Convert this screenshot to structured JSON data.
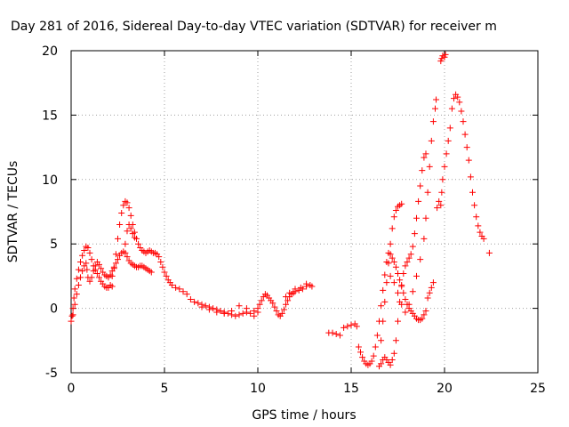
{
  "chart_data": {
    "type": "scatter",
    "title": "Day 281 of 2016, Sidereal Day-to-day VTEC variation (SDTVAR) for receiver m",
    "xlabel": "GPS time / hours",
    "ylabel": "SDTVAR / TECUs",
    "xlim": [
      0,
      25
    ],
    "ylim": [
      -5,
      20
    ],
    "xticks": [
      "0",
      "5",
      "10",
      "15",
      "20",
      "25"
    ],
    "yticks": [
      "-5",
      "0",
      "5",
      "10",
      "15",
      "20"
    ],
    "grid": true,
    "marker": "+",
    "color": "#ff0000",
    "series": [
      {
        "points": [
          [
            0.0,
            -1.0
          ],
          [
            0.05,
            -0.6
          ],
          [
            0.1,
            0.0
          ],
          [
            0.15,
            0.8
          ],
          [
            0.2,
            1.5
          ],
          [
            0.3,
            2.3
          ],
          [
            0.4,
            3.0
          ],
          [
            0.5,
            3.6
          ],
          [
            0.6,
            4.1
          ],
          [
            0.7,
            4.5
          ],
          [
            0.8,
            4.8
          ],
          [
            0.9,
            4.7
          ],
          [
            1.0,
            4.3
          ],
          [
            1.1,
            3.8
          ],
          [
            1.2,
            3.3
          ],
          [
            1.3,
            3.0
          ],
          [
            1.4,
            2.7
          ],
          [
            1.5,
            2.4
          ],
          [
            1.6,
            2.1
          ],
          [
            1.7,
            1.9
          ],
          [
            1.8,
            1.7
          ],
          [
            1.9,
            1.6
          ],
          [
            2.0,
            1.6
          ],
          [
            2.1,
            1.8
          ],
          [
            2.2,
            1.7
          ],
          [
            0.1,
            -0.5
          ],
          [
            0.2,
            0.3
          ],
          [
            0.3,
            1.1
          ],
          [
            0.4,
            1.8
          ],
          [
            0.5,
            2.4
          ],
          [
            0.6,
            2.9
          ],
          [
            0.7,
            3.3
          ],
          [
            0.8,
            3.5
          ],
          [
            0.85,
            3.0
          ],
          [
            0.9,
            2.4
          ],
          [
            1.0,
            2.1
          ],
          [
            1.1,
            2.4
          ],
          [
            1.2,
            2.9
          ],
          [
            1.3,
            3.3
          ],
          [
            1.4,
            3.6
          ],
          [
            1.5,
            3.4
          ],
          [
            1.6,
            3.1
          ],
          [
            1.7,
            2.8
          ],
          [
            1.8,
            2.6
          ],
          [
            1.9,
            2.5
          ],
          [
            2.0,
            2.4
          ],
          [
            2.1,
            2.6
          ],
          [
            2.2,
            2.9
          ],
          [
            2.3,
            3.2
          ],
          [
            2.4,
            3.5
          ],
          [
            2.5,
            3.8
          ],
          [
            2.6,
            4.1
          ],
          [
            2.7,
            4.3
          ],
          [
            2.8,
            4.4
          ],
          [
            2.9,
            4.3
          ],
          [
            3.0,
            4.0
          ],
          [
            3.1,
            3.7
          ],
          [
            3.2,
            3.5
          ],
          [
            3.3,
            3.4
          ],
          [
            3.4,
            3.3
          ],
          [
            3.5,
            3.2
          ],
          [
            3.6,
            3.2
          ],
          [
            3.7,
            3.3
          ],
          [
            3.8,
            3.3
          ],
          [
            3.9,
            3.2
          ],
          [
            4.0,
            3.1
          ],
          [
            4.1,
            3.0
          ],
          [
            4.2,
            2.9
          ],
          [
            4.3,
            2.8
          ],
          [
            2.2,
            2.5
          ],
          [
            2.3,
            3.1
          ],
          [
            2.4,
            4.2
          ],
          [
            2.5,
            5.4
          ],
          [
            2.6,
            6.5
          ],
          [
            2.7,
            7.4
          ],
          [
            2.8,
            8.0
          ],
          [
            2.9,
            8.3
          ],
          [
            3.0,
            8.2
          ],
          [
            3.1,
            7.8
          ],
          [
            3.2,
            7.2
          ],
          [
            3.3,
            6.5
          ],
          [
            3.4,
            5.9
          ],
          [
            3.5,
            5.4
          ],
          [
            3.6,
            5.0
          ],
          [
            3.7,
            4.7
          ],
          [
            3.8,
            4.5
          ],
          [
            3.9,
            4.4
          ],
          [
            4.0,
            4.3
          ],
          [
            4.1,
            4.4
          ],
          [
            4.2,
            4.5
          ],
          [
            4.3,
            4.4
          ],
          [
            4.4,
            4.3
          ],
          [
            4.5,
            4.3
          ],
          [
            4.6,
            4.2
          ],
          [
            4.7,
            4.0
          ],
          [
            4.8,
            3.6
          ],
          [
            4.9,
            3.2
          ],
          [
            5.0,
            2.8
          ],
          [
            5.1,
            2.5
          ],
          [
            5.2,
            2.2
          ],
          [
            5.3,
            2.0
          ],
          [
            5.4,
            1.8
          ],
          [
            5.6,
            1.6
          ],
          [
            5.8,
            1.5
          ],
          [
            6.0,
            1.3
          ],
          [
            6.2,
            1.1
          ],
          [
            2.9,
            5.0
          ],
          [
            3.0,
            6.0
          ],
          [
            3.1,
            6.5
          ],
          [
            3.2,
            6.2
          ],
          [
            3.3,
            5.8
          ],
          [
            3.4,
            5.5
          ],
          [
            6.4,
            0.7
          ],
          [
            6.6,
            0.5
          ],
          [
            6.8,
            0.4
          ],
          [
            7.0,
            0.3
          ],
          [
            7.2,
            0.2
          ],
          [
            7.4,
            0.1
          ],
          [
            7.6,
            0.0
          ],
          [
            7.8,
            -0.1
          ],
          [
            8.0,
            -0.2
          ],
          [
            8.2,
            -0.3
          ],
          [
            8.4,
            -0.4
          ],
          [
            8.6,
            -0.5
          ],
          [
            8.8,
            -0.6
          ],
          [
            9.0,
            -0.5
          ],
          [
            9.2,
            -0.4
          ],
          [
            9.4,
            -0.3
          ],
          [
            9.6,
            -0.4
          ],
          [
            9.8,
            -0.6
          ],
          [
            10.0,
            -0.3
          ],
          [
            7.0,
            0.1
          ],
          [
            7.4,
            -0.1
          ],
          [
            7.8,
            -0.3
          ],
          [
            8.2,
            -0.4
          ],
          [
            8.6,
            -0.2
          ],
          [
            9.0,
            0.2
          ],
          [
            9.4,
            0.0
          ],
          [
            9.8,
            -0.2
          ],
          [
            10.0,
            0.0
          ],
          [
            10.1,
            0.3
          ],
          [
            10.2,
            0.6
          ],
          [
            10.3,
            0.9
          ],
          [
            10.4,
            1.1
          ],
          [
            10.5,
            1.0
          ],
          [
            10.6,
            0.8
          ],
          [
            10.7,
            0.6
          ],
          [
            10.8,
            0.4
          ],
          [
            10.9,
            0.1
          ],
          [
            11.0,
            -0.2
          ],
          [
            11.1,
            -0.5
          ],
          [
            11.2,
            -0.6
          ],
          [
            11.3,
            -0.4
          ],
          [
            11.4,
            -0.1
          ],
          [
            11.5,
            0.3
          ],
          [
            11.6,
            0.6
          ],
          [
            11.7,
            0.9
          ],
          [
            11.8,
            1.1
          ],
          [
            11.9,
            1.2
          ],
          [
            12.0,
            1.3
          ],
          [
            12.2,
            1.4
          ],
          [
            12.4,
            1.5
          ],
          [
            12.6,
            1.7
          ],
          [
            12.8,
            1.8
          ],
          [
            12.9,
            1.7
          ],
          [
            11.5,
            0.9
          ],
          [
            11.7,
            1.2
          ],
          [
            12.0,
            1.5
          ],
          [
            12.3,
            1.6
          ],
          [
            12.6,
            1.9
          ],
          [
            13.8,
            -1.9
          ],
          [
            14.0,
            -1.9
          ],
          [
            14.2,
            -2.0
          ],
          [
            14.4,
            -2.1
          ],
          [
            14.6,
            -1.5
          ],
          [
            14.8,
            -1.4
          ],
          [
            15.0,
            -1.3
          ],
          [
            15.2,
            -1.2
          ],
          [
            15.3,
            -1.4
          ],
          [
            15.4,
            -3.0
          ],
          [
            15.5,
            -3.4
          ],
          [
            15.6,
            -3.8
          ],
          [
            15.7,
            -4.1
          ],
          [
            15.8,
            -4.3
          ],
          [
            15.9,
            -4.4
          ],
          [
            16.0,
            -4.3
          ],
          [
            16.1,
            -4.1
          ],
          [
            16.2,
            -3.7
          ],
          [
            16.3,
            -3.0
          ],
          [
            16.4,
            -2.1
          ],
          [
            16.5,
            -1.0
          ],
          [
            16.6,
            0.2
          ],
          [
            16.7,
            1.4
          ],
          [
            16.8,
            2.6
          ],
          [
            16.9,
            3.6
          ],
          [
            17.0,
            4.3
          ],
          [
            17.1,
            4.2
          ],
          [
            17.2,
            3.9
          ],
          [
            17.3,
            3.6
          ],
          [
            17.4,
            3.2
          ],
          [
            17.5,
            2.7
          ],
          [
            17.6,
            2.2
          ],
          [
            17.7,
            1.7
          ],
          [
            17.8,
            1.2
          ],
          [
            17.9,
            0.7
          ],
          [
            18.0,
            0.3
          ],
          [
            18.1,
            0.0
          ],
          [
            18.2,
            -0.2
          ],
          [
            18.3,
            -0.4
          ],
          [
            18.4,
            -0.6
          ],
          [
            18.5,
            -0.8
          ],
          [
            18.6,
            -0.9
          ],
          [
            18.7,
            -0.9
          ],
          [
            18.8,
            -0.8
          ],
          [
            18.9,
            -0.5
          ],
          [
            19.0,
            -0.2
          ],
          [
            16.5,
            -4.5
          ],
          [
            16.6,
            -4.3
          ],
          [
            16.7,
            -4.0
          ],
          [
            16.8,
            -3.8
          ],
          [
            16.9,
            -4.0
          ],
          [
            17.0,
            -4.2
          ],
          [
            17.1,
            -4.4
          ],
          [
            17.2,
            -4.0
          ],
          [
            17.3,
            -3.5
          ],
          [
            17.4,
            -2.5
          ],
          [
            17.5,
            -1.0
          ],
          [
            17.6,
            0.5
          ],
          [
            17.7,
            1.8
          ],
          [
            17.8,
            2.7
          ],
          [
            17.9,
            3.3
          ],
          [
            18.0,
            3.6
          ],
          [
            18.1,
            3.9
          ],
          [
            18.2,
            4.2
          ],
          [
            18.3,
            4.8
          ],
          [
            18.4,
            5.8
          ],
          [
            18.5,
            7.0
          ],
          [
            18.6,
            8.3
          ],
          [
            18.7,
            9.5
          ],
          [
            18.8,
            10.7
          ],
          [
            18.9,
            11.7
          ],
          [
            19.0,
            12.0
          ],
          [
            16.6,
            -2.5
          ],
          [
            16.7,
            -1.0
          ],
          [
            16.8,
            0.5
          ],
          [
            16.9,
            2.0
          ],
          [
            17.0,
            3.5
          ],
          [
            17.1,
            5.0
          ],
          [
            17.2,
            6.2
          ],
          [
            17.3,
            7.1
          ],
          [
            17.4,
            7.6
          ],
          [
            17.5,
            7.9
          ],
          [
            17.6,
            8.0
          ],
          [
            17.7,
            8.1
          ],
          [
            17.1,
            2.5
          ],
          [
            17.3,
            2.0
          ],
          [
            17.5,
            1.2
          ],
          [
            17.7,
            0.3
          ],
          [
            17.9,
            -0.3
          ],
          [
            18.1,
            0.3
          ],
          [
            18.3,
            1.3
          ],
          [
            18.5,
            2.5
          ],
          [
            18.7,
            3.8
          ],
          [
            18.9,
            5.4
          ],
          [
            19.0,
            7.0
          ],
          [
            19.1,
            9.0
          ],
          [
            19.2,
            11.0
          ],
          [
            19.3,
            13.0
          ],
          [
            19.4,
            14.5
          ],
          [
            19.5,
            15.5
          ],
          [
            19.55,
            16.2
          ],
          [
            19.1,
            0.8
          ],
          [
            19.2,
            1.2
          ],
          [
            19.3,
            1.6
          ],
          [
            19.4,
            2.0
          ],
          [
            19.8,
            8.0
          ],
          [
            19.85,
            9.0
          ],
          [
            19.9,
            10.0
          ],
          [
            20.0,
            11.0
          ],
          [
            20.1,
            12.0
          ],
          [
            20.2,
            13.0
          ],
          [
            20.3,
            14.0
          ],
          [
            20.4,
            15.5
          ],
          [
            20.5,
            16.3
          ],
          [
            20.6,
            16.6
          ],
          [
            20.7,
            16.4
          ],
          [
            20.8,
            16.0
          ],
          [
            20.9,
            15.3
          ],
          [
            21.0,
            14.5
          ],
          [
            21.1,
            13.5
          ],
          [
            21.2,
            12.5
          ],
          [
            21.3,
            11.5
          ],
          [
            21.4,
            10.2
          ],
          [
            21.5,
            9.0
          ],
          [
            21.6,
            8.0
          ],
          [
            21.7,
            7.1
          ],
          [
            21.8,
            6.4
          ],
          [
            21.9,
            5.9
          ],
          [
            22.0,
            5.6
          ],
          [
            22.1,
            5.4
          ],
          [
            22.4,
            4.3
          ],
          [
            19.8,
            19.2
          ],
          [
            19.85,
            19.4
          ],
          [
            19.9,
            19.6
          ],
          [
            20.0,
            19.5
          ],
          [
            20.05,
            19.7
          ],
          [
            19.6,
            7.8
          ],
          [
            19.7,
            8.3
          ]
        ]
      }
    ]
  }
}
